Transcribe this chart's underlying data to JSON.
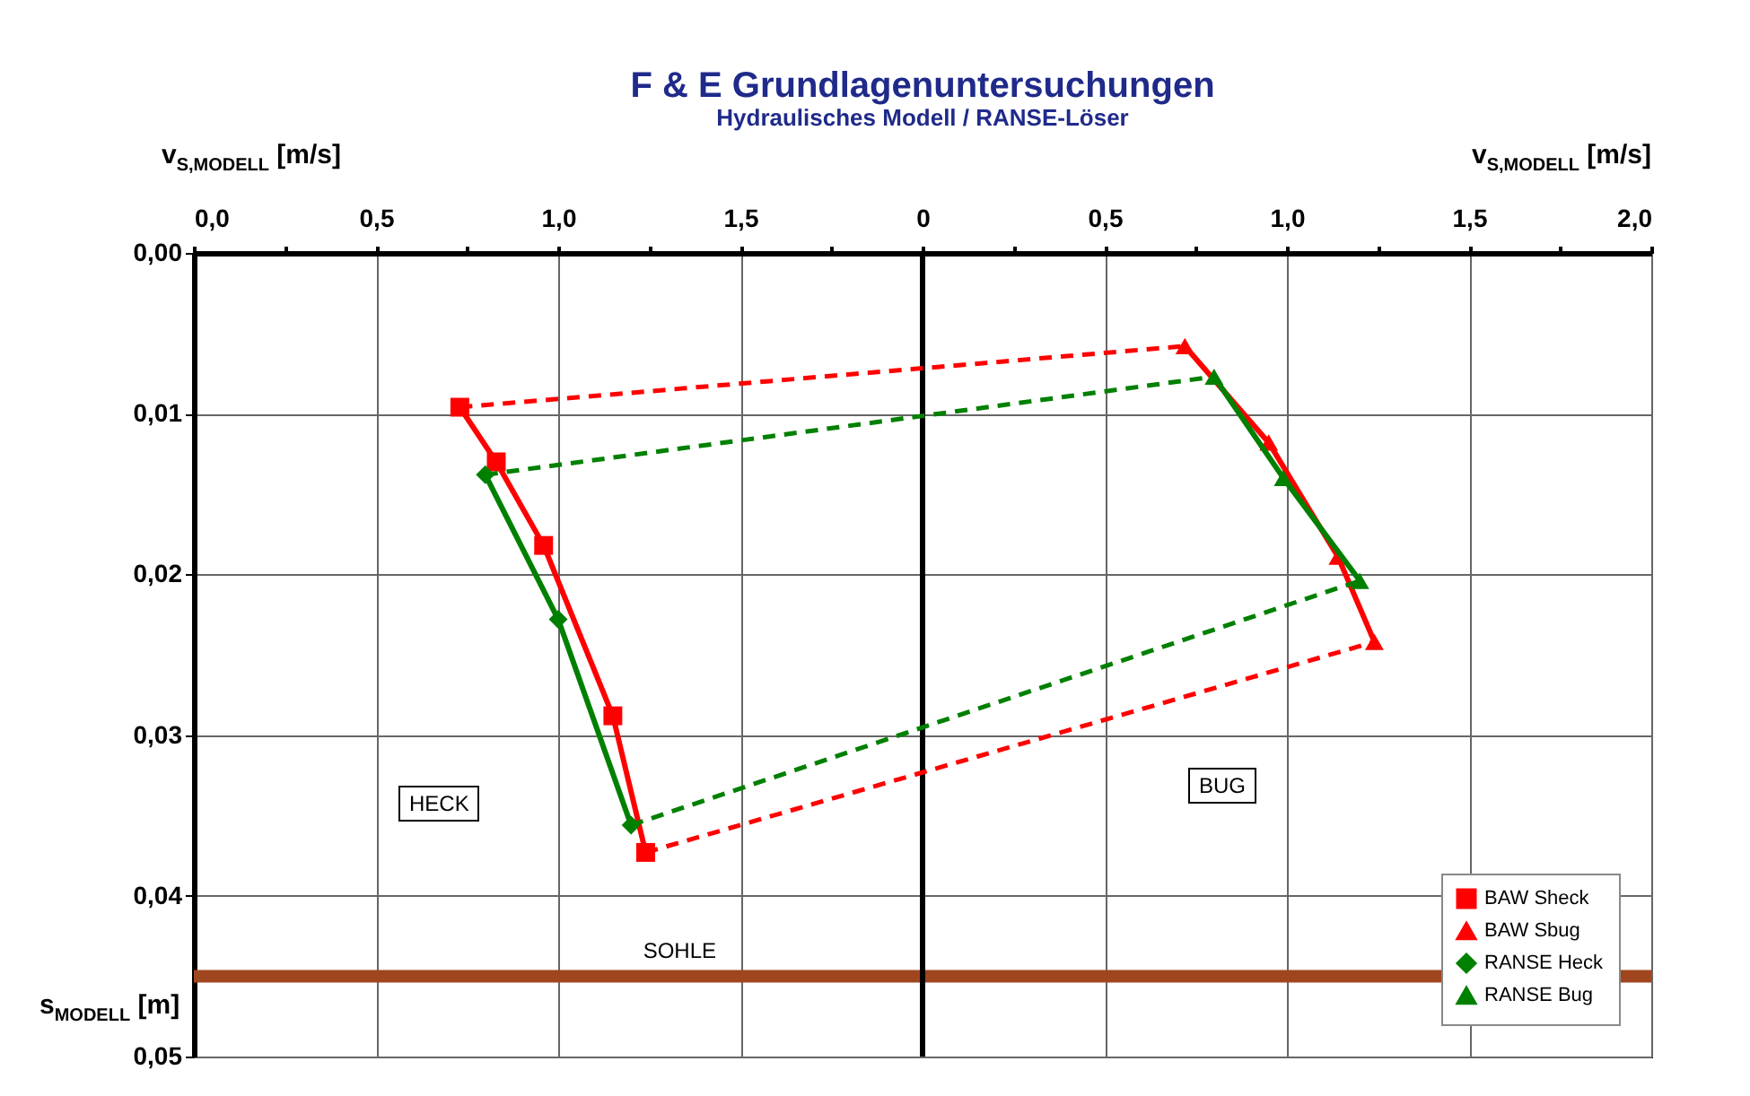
{
  "chart_data": {
    "type": "line",
    "title": "F & E Grundlagenuntersuchungen",
    "subtitle": "Hydraulisches Modell / RANSE-Löser",
    "xlabel": "v$_{S,MODELL}$ [m/s]",
    "x2label": "v$_{S,MODELL}$ [m/s]",
    "ylabel": "s$_{MODELL}$ [m]",
    "xlim": [
      0,
      4
    ],
    "ylim": [
      0.05,
      0
    ],
    "x2lim": [
      -2,
      2
    ],
    "xticks": [
      {
        "value": 0,
        "label": "0,0"
      },
      {
        "value": 0.25,
        "label": null
      },
      {
        "value": 0.5,
        "label": "0,5"
      },
      {
        "value": 0.75,
        "label": null
      },
      {
        "value": 1,
        "label": "1,0"
      },
      {
        "value": 1.25,
        "label": null
      },
      {
        "value": 1.5,
        "label": "1,5"
      },
      {
        "value": 1.75,
        "label": null
      }
    ],
    "x2ticks": [
      {
        "value": 0,
        "label": "0"
      },
      {
        "value": 0.25,
        "label": null
      },
      {
        "value": 0.5,
        "label": "0,5"
      },
      {
        "value": 0.75,
        "label": null
      },
      {
        "value": 1,
        "label": "1,0"
      },
      {
        "value": 1.25,
        "label": null
      },
      {
        "value": 1.5,
        "label": "1,5"
      },
      {
        "value": 1.75,
        "label": null
      },
      {
        "value": 2,
        "label": "2,0"
      }
    ],
    "yticks": [
      {
        "value": 0,
        "label": "0,00"
      },
      {
        "value": 0.01,
        "label": "0,01"
      },
      {
        "value": 0.02,
        "label": "0,02"
      },
      {
        "value": 0.03,
        "label": "0,03"
      },
      {
        "value": 0.04,
        "label": "0,04"
      },
      {
        "value": 0.05,
        "label": "0,05"
      }
    ],
    "grid": true,
    "legend": "bottom right",
    "line_style": "solid",
    "series": [
      {
        "name": "BAW  Sheck",
        "color": "#ff0000",
        "marker": "square",
        "x": [
          0.73,
          0.83,
          0.96,
          1.15,
          1.24
        ],
        "values": [
          0.0096,
          0.013,
          0.0182,
          0.0288,
          0.0373
        ]
      },
      {
        "name": "BAW Sbug",
        "color": "#ff0000",
        "marker": "triangle",
        "axis": "x2",
        "x": [
          0.72,
          0.95,
          1.14,
          1.24
        ],
        "values": [
          0.0058,
          0.0118,
          0.0189,
          0.0242
        ]
      },
      {
        "name": "RANSE Heck",
        "color": "#008000",
        "marker": "diamond",
        "x": [
          0.8,
          1.0,
          1.2
        ],
        "values": [
          0.0138,
          0.0228,
          0.0356
        ]
      },
      {
        "name": "RANSE Bug",
        "color": "#008000",
        "marker": "triangle",
        "axis": "x2",
        "x": [
          0.8,
          0.99,
          1.2
        ],
        "values": [
          0.0077,
          0.014,
          0.0204
        ]
      },
      {
        "color": "#ff0000",
        "marker": "none",
        "line_style": "dashed",
        "x": [
          0.73,
          2.72
        ],
        "values": [
          0.0096,
          0.0058
        ]
      },
      {
        "color": "#ff0000",
        "marker": "none",
        "line_style": "dashed",
        "x": [
          1.24,
          3.24
        ],
        "values": [
          0.0373,
          0.0242
        ]
      },
      {
        "color": "#008000",
        "marker": "none",
        "line_style": "dashed",
        "x": [
          0.8,
          2.8
        ],
        "values": [
          0.0138,
          0.0077
        ]
      },
      {
        "color": "#008000",
        "marker": "none",
        "line_style": "dashed",
        "x": [
          1.2,
          3.2
        ],
        "values": [
          0.0356,
          0.0204
        ]
      }
    ],
    "ref_lines": [
      {
        "axis": "y",
        "value": 0.045,
        "label": "SOHLE",
        "color": "#a0461e"
      },
      {
        "axis": "x",
        "value": 2,
        "color": "#000000"
      }
    ],
    "annotations": [
      "HECK",
      "BUG"
    ]
  }
}
